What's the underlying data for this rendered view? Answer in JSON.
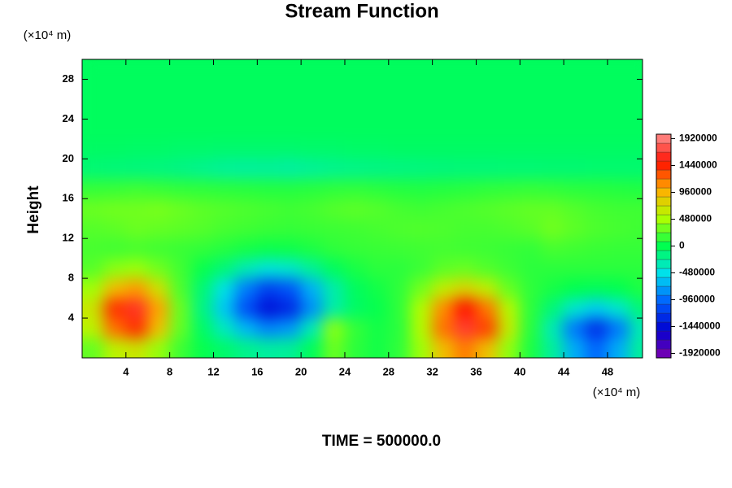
{
  "chart_data": {
    "type": "contour",
    "title": "Stream Function",
    "y_unit": "(×10⁴ m)",
    "x_unit": "(×10⁴ m)",
    "ylabel": "Height",
    "annotation": "TIME = 500000.0",
    "xlim": [
      0,
      51.2
    ],
    "ylim": [
      0,
      30
    ],
    "xticks": [
      4,
      8,
      12,
      16,
      20,
      24,
      28,
      32,
      36,
      40,
      44,
      48
    ],
    "yticks": [
      4,
      8,
      12,
      16,
      20,
      24,
      28
    ],
    "clim": [
      -2000000,
      2000000
    ],
    "colorbar_ticks": [
      1920000,
      1440000,
      960000,
      480000,
      0,
      -480000,
      -960000,
      -1440000,
      -1920000
    ],
    "colormap": [
      "#8000b0",
      "#0000d0",
      "#0060ff",
      "#00e0f0",
      "#00ff50",
      "#b0ff00",
      "#ffb000",
      "#ff1000",
      "#ff9090"
    ],
    "x": [
      1,
      3,
      5,
      7,
      9,
      11,
      13,
      15,
      17,
      19,
      21,
      23,
      25,
      27,
      29,
      31,
      33,
      35,
      37,
      39,
      41,
      43,
      45,
      47,
      49,
      51
    ],
    "y": [
      1,
      3,
      5,
      7,
      9,
      11,
      13,
      15,
      17,
      19,
      21,
      23,
      25,
      27,
      29
    ],
    "z": [
      [
        282000,
        567000,
        657000,
        427000,
        174000,
        18000,
        -80000,
        -180000,
        -244000,
        -220000,
        -28000,
        297000,
        123000,
        50000,
        134000,
        449000,
        905000,
        1161000,
        894000,
        408000,
        74000,
        -235000,
        -694000,
        -969000,
        -694000,
        -235000
      ],
      [
        567000,
        1201000,
        1400000,
        891000,
        280000,
        -68000,
        -350000,
        -659000,
        -856000,
        -783000,
        -321000,
        389000,
        145000,
        50000,
        120000,
        527000,
        1197000,
        1674000,
        1348000,
        615000,
        108000,
        -317000,
        -906000,
        -1259000,
        -906000,
        -317000
      ],
      [
        656000,
        1400000,
        1635000,
        1036000,
        299000,
        -160000,
        -592000,
        -1089000,
        -1405000,
        -1288000,
        -815000,
        -274000,
        -65000,
        13000,
        132000,
        515000,
        1108000,
        1492000,
        1177000,
        536000,
        126000,
        -124000,
        -403000,
        -571000,
        -403000,
        -124000
      ],
      [
        458000,
        921000,
        1067000,
        694000,
        218000,
        -111000,
        -467000,
        -890000,
        -1160000,
        -1059000,
        -684000,
        -283000,
        -45000,
        49000,
        131000,
        327000,
        606000,
        766000,
        601000,
        291000,
        130000,
        60000,
        1000,
        -28000,
        1000,
        80000
      ],
      [
        244000,
        396000,
        443000,
        321000,
        186000,
        19000,
        -126000,
        -316000,
        -436000,
        -391000,
        -223000,
        -43000,
        64000,
        120000,
        120000,
        164000,
        262000,
        295000,
        232000,
        170000,
        120000,
        120000,
        120000,
        120000,
        120000,
        120000
      ],
      [
        200000,
        180000,
        200000,
        180000,
        160000,
        140000,
        101000,
        56000,
        27000,
        38000,
        78000,
        130000,
        150000,
        160000,
        170000,
        180000,
        190000,
        180000,
        170000,
        150000,
        140000,
        200000,
        180000,
        160000,
        150000,
        150000
      ],
      [
        240000,
        260000,
        300000,
        280000,
        260000,
        240000,
        200000,
        180000,
        160000,
        150000,
        160000,
        170000,
        180000,
        200000,
        220000,
        230000,
        220000,
        200000,
        200000,
        220000,
        250000,
        320000,
        260000,
        220000,
        200000,
        180000
      ],
      [
        300000,
        320000,
        320000,
        340000,
        300000,
        260000,
        240000,
        220000,
        200000,
        180000,
        200000,
        240000,
        260000,
        240000,
        200000,
        180000,
        200000,
        220000,
        240000,
        260000,
        280000,
        280000,
        240000,
        200000,
        180000,
        180000
      ],
      [
        150000,
        160000,
        180000,
        160000,
        140000,
        130000,
        120000,
        110000,
        100000,
        100000,
        110000,
        130000,
        140000,
        120000,
        100000,
        90000,
        100000,
        110000,
        130000,
        140000,
        150000,
        140000,
        120000,
        110000,
        100000,
        90000
      ],
      [
        -120000,
        -130000,
        -140000,
        -150000,
        -170000,
        -200000,
        -230000,
        -250000,
        -240000,
        -260000,
        -230000,
        -200000,
        -180000,
        -170000,
        -160000,
        -150000,
        -140000,
        -130000,
        -130000,
        -120000,
        -120000,
        -110000,
        -110000,
        -100000,
        -100000,
        -100000
      ],
      [
        -60000,
        -60000,
        -70000,
        -70000,
        -80000,
        -80000,
        -90000,
        -90000,
        -90000,
        -90000,
        -80000,
        -80000,
        -70000,
        -70000,
        -60000,
        -60000,
        -60000,
        -60000,
        -60000,
        -60000,
        -60000,
        -60000,
        -60000,
        -60000,
        -60000,
        -60000
      ],
      [
        -40000,
        -40000,
        -40000,
        -40000,
        -40000,
        -40000,
        -40000,
        -40000,
        -40000,
        -40000,
        -40000,
        -40000,
        -40000,
        -40000,
        -40000,
        -40000,
        -40000,
        -40000,
        -40000,
        -40000,
        -40000,
        -40000,
        -40000,
        -40000,
        -40000,
        -40000
      ],
      [
        -40000,
        -40000,
        -40000,
        -40000,
        -40000,
        -40000,
        -40000,
        -40000,
        -40000,
        -40000,
        -40000,
        -40000,
        -40000,
        -40000,
        -40000,
        -40000,
        -40000,
        -40000,
        -40000,
        -40000,
        -40000,
        -40000,
        -40000,
        -40000,
        -40000,
        -40000
      ],
      [
        -40000,
        -40000,
        -40000,
        -40000,
        -40000,
        -40000,
        -40000,
        -40000,
        -40000,
        -40000,
        -40000,
        -40000,
        -40000,
        -40000,
        -40000,
        -40000,
        -40000,
        -40000,
        -40000,
        -40000,
        -40000,
        -40000,
        -40000,
        -40000,
        -40000,
        -40000
      ],
      [
        -40000,
        -40000,
        -40000,
        -40000,
        -40000,
        -40000,
        -40000,
        -40000,
        -40000,
        -40000,
        -40000,
        -40000,
        -40000,
        -40000,
        -40000,
        -40000,
        -40000,
        -40000,
        -40000,
        -40000,
        -40000,
        -40000,
        -40000,
        -40000,
        -40000,
        -40000
      ]
    ]
  }
}
